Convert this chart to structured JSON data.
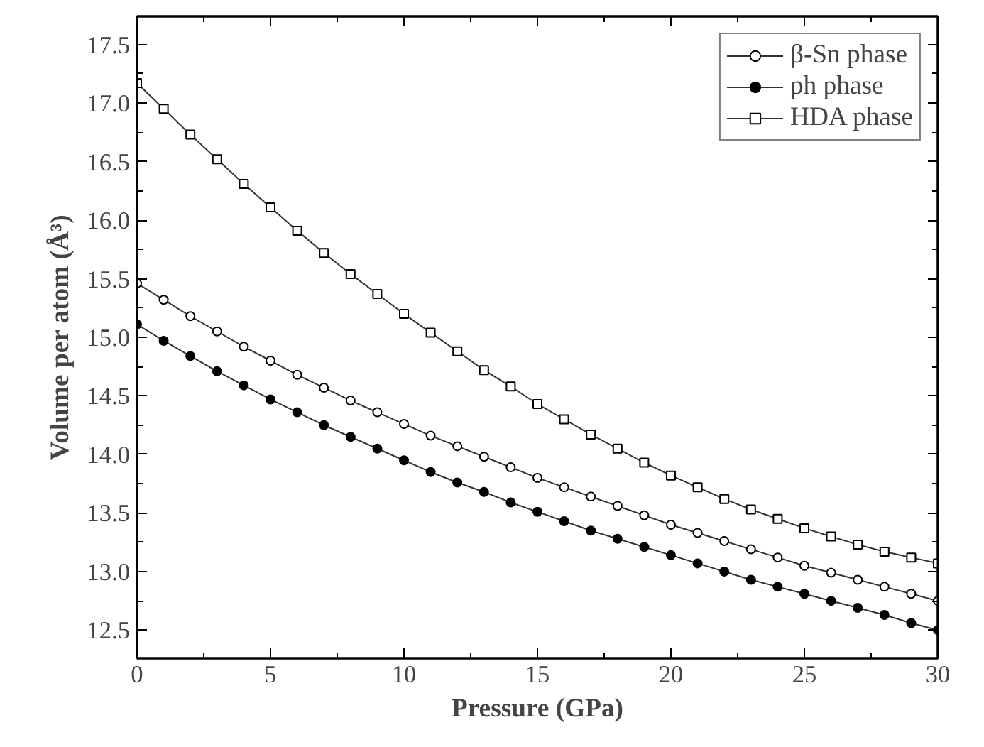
{
  "chart_data": {
    "type": "line",
    "xlabel": "Pressure (GPa)",
    "ylabel": "Volume per atom (Å³)",
    "x": [
      0,
      1,
      2,
      3,
      4,
      5,
      6,
      7,
      8,
      9,
      10,
      11,
      12,
      13,
      14,
      15,
      16,
      17,
      18,
      19,
      20,
      21,
      22,
      23,
      24,
      25,
      26,
      27,
      28,
      29,
      30
    ],
    "series": [
      {
        "name": "β-Sn phase",
        "color": "#000000",
        "marker": "circle",
        "values": [
          15.46,
          15.32,
          15.18,
          15.05,
          14.92,
          14.8,
          14.68,
          14.57,
          14.46,
          14.36,
          14.26,
          14.16,
          14.07,
          13.98,
          13.89,
          13.8,
          13.72,
          13.64,
          13.56,
          13.48,
          13.4,
          13.33,
          13.26,
          13.19,
          13.12,
          13.05,
          12.99,
          12.93,
          12.87,
          12.81,
          12.75
        ]
      },
      {
        "name": "ph phase",
        "color": "#000000",
        "marker": "circle",
        "values": [
          15.11,
          14.97,
          14.84,
          14.71,
          14.59,
          14.47,
          14.36,
          14.25,
          14.15,
          14.05,
          13.95,
          13.85,
          13.76,
          13.68,
          13.59,
          13.51,
          13.43,
          13.35,
          13.28,
          13.21,
          13.14,
          13.07,
          13.0,
          12.93,
          12.87,
          12.81,
          12.75,
          12.69,
          12.63,
          12.56,
          12.5
        ]
      },
      {
        "name": "HDA phase",
        "color": "#000000",
        "marker": "square",
        "values": [
          17.17,
          16.95,
          16.73,
          16.52,
          16.31,
          16.11,
          15.91,
          15.72,
          15.54,
          15.37,
          15.2,
          15.04,
          14.88,
          14.72,
          14.58,
          14.43,
          14.3,
          14.17,
          14.05,
          13.93,
          13.82,
          13.72,
          13.62,
          13.53,
          13.45,
          13.37,
          13.3,
          13.23,
          13.17,
          13.12,
          13.07
        ]
      }
    ],
    "xlim": [
      0,
      30
    ],
    "xticks": [
      0,
      5,
      10,
      15,
      20,
      25,
      30
    ],
    "ylim": [
      12.26,
      17.74
    ],
    "yticks": [
      12.5,
      {
        "value": 13,
        "label": "13.0"
      },
      13.5,
      {
        "value": 14,
        "label": "14.0"
      },
      14.5,
      {
        "value": 15,
        "label": "15.0"
      },
      15.5,
      {
        "value": 16,
        "label": "16.0"
      },
      16.5,
      {
        "value": 17,
        "label": "17.0"
      },
      17.5
    ],
    "grid": false,
    "legend": "top right",
    "line_style": "solid"
  }
}
